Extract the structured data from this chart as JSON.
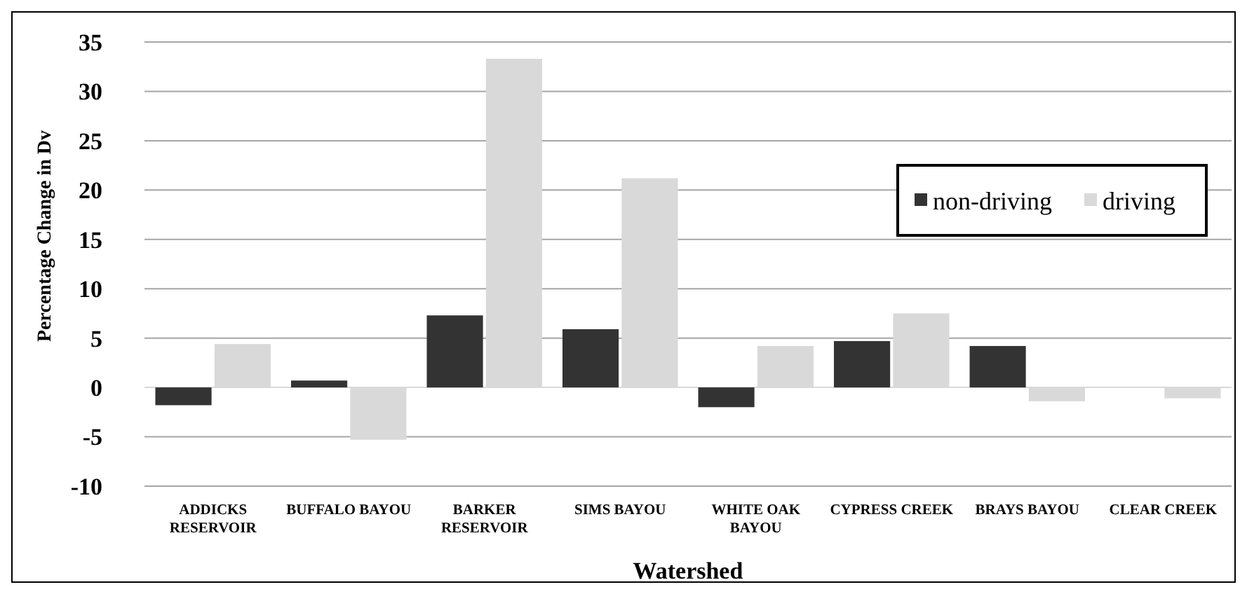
{
  "chart_data": {
    "type": "bar",
    "xlabel": "Watershed",
    "ylabel": "Percentage Change in Dv",
    "categories": [
      "ADDICKS RESERVOIR",
      "BUFFALO BAYOU",
      "BARKER RESERVOIR",
      "SIMS BAYOU",
      "WHITE OAK BAYOU",
      "CYPRESS CREEK",
      "BRAYS BAYOU",
      "CLEAR CREEK"
    ],
    "series": [
      {
        "name": "non-driving",
        "color": "#333333",
        "values": [
          -1.8,
          0.7,
          7.3,
          5.9,
          -2,
          4.7,
          4.2,
          0
        ]
      },
      {
        "name": "driving",
        "color": "#d9d9d9",
        "values": [
          4.4,
          -5.3,
          33.3,
          21.2,
          4.2,
          7.5,
          -1.4,
          -1.1
        ]
      }
    ],
    "ylim": [
      -10,
      35
    ],
    "yticks": [
      -10,
      -5,
      0,
      5,
      10,
      15,
      20,
      25,
      30,
      35
    ],
    "grid": "y",
    "legend": "top right"
  }
}
